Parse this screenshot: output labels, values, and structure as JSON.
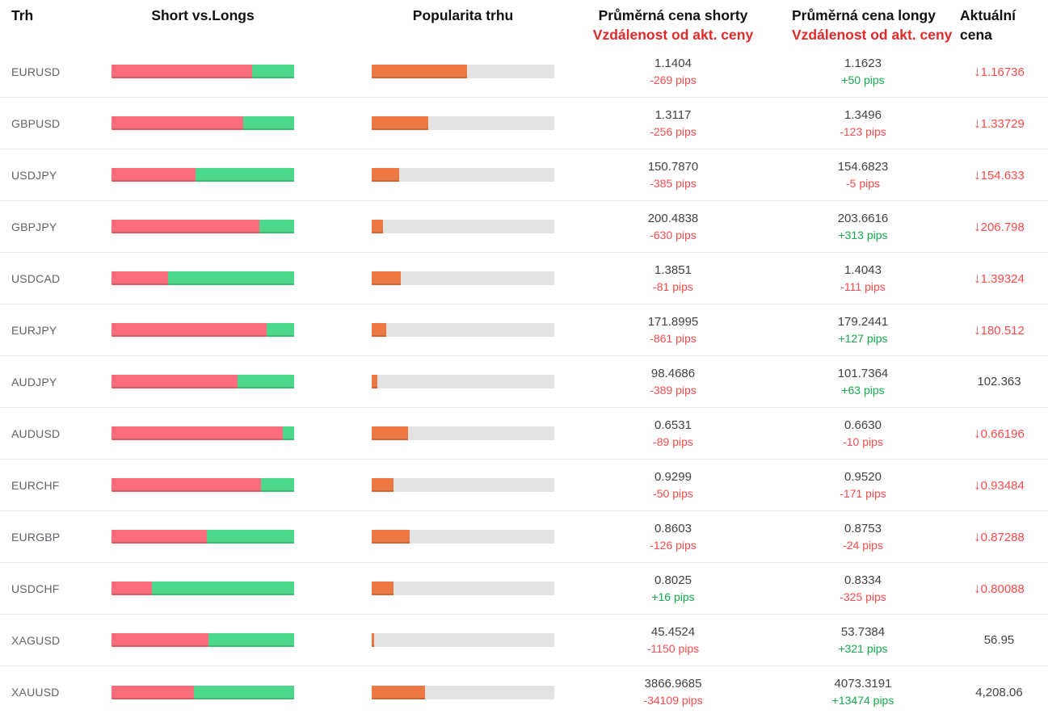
{
  "table": {
    "headers": {
      "market": "Trh",
      "short_vs_longs": "Short vs.Longs",
      "popularity": "Popularita trhu",
      "avg_short_line1": "Průměrná cena shorty",
      "avg_short_line2": "Vzdálenost od akt. ceny",
      "avg_long_line1": "Průměrná cena longy",
      "avg_long_line2": "Vzdálenost od akt. ceny",
      "current_line1": "Aktuální",
      "current_line2": "cena"
    },
    "rows": [
      {
        "market": "EURUSD",
        "short_pct": 77,
        "long_pct": 23,
        "popularity_pct": 52,
        "avg_short": "1.1404",
        "short_dist": "-269 pips",
        "avg_long": "1.1623",
        "long_dist": "+50 pips",
        "current": "1.16736",
        "current_dir": "down"
      },
      {
        "market": "GBPUSD",
        "short_pct": 72,
        "long_pct": 28,
        "popularity_pct": 31,
        "avg_short": "1.3117",
        "short_dist": "-256 pips",
        "avg_long": "1.3496",
        "long_dist": "-123 pips",
        "current": "1.33729",
        "current_dir": "down"
      },
      {
        "market": "USDJPY",
        "short_pct": 46,
        "long_pct": 54,
        "popularity_pct": 15,
        "avg_short": "150.7870",
        "short_dist": "-385 pips",
        "avg_long": "154.6823",
        "long_dist": "-5 pips",
        "current": "154.633",
        "current_dir": "down"
      },
      {
        "market": "GBPJPY",
        "short_pct": 81,
        "long_pct": 19,
        "popularity_pct": 6,
        "avg_short": "200.4838",
        "short_dist": "-630 pips",
        "avg_long": "203.6616",
        "long_dist": "+313 pips",
        "current": "206.798",
        "current_dir": "down"
      },
      {
        "market": "USDCAD",
        "short_pct": 31,
        "long_pct": 69,
        "popularity_pct": 16,
        "avg_short": "1.3851",
        "short_dist": "-81 pips",
        "avg_long": "1.4043",
        "long_dist": "-111 pips",
        "current": "1.39324",
        "current_dir": "down"
      },
      {
        "market": "EURJPY",
        "short_pct": 85,
        "long_pct": 15,
        "popularity_pct": 8,
        "avg_short": "171.8995",
        "short_dist": "-861 pips",
        "avg_long": "179.2441",
        "long_dist": "+127 pips",
        "current": "180.512",
        "current_dir": "down"
      },
      {
        "market": "AUDJPY",
        "short_pct": 69,
        "long_pct": 31,
        "popularity_pct": 3,
        "avg_short": "98.4686",
        "short_dist": "-389 pips",
        "avg_long": "101.7364",
        "long_dist": "+63 pips",
        "current": "102.363",
        "current_dir": "none"
      },
      {
        "market": "AUDUSD",
        "short_pct": 94,
        "long_pct": 6,
        "popularity_pct": 20,
        "avg_short": "0.6531",
        "short_dist": "-89 pips",
        "avg_long": "0.6630",
        "long_dist": "-10 pips",
        "current": "0.66196",
        "current_dir": "down"
      },
      {
        "market": "EURCHF",
        "short_pct": 82,
        "long_pct": 18,
        "popularity_pct": 12,
        "avg_short": "0.9299",
        "short_dist": "-50 pips",
        "avg_long": "0.9520",
        "long_dist": "-171 pips",
        "current": "0.93484",
        "current_dir": "down"
      },
      {
        "market": "EURGBP",
        "short_pct": 52,
        "long_pct": 48,
        "popularity_pct": 21,
        "avg_short": "0.8603",
        "short_dist": "-126 pips",
        "avg_long": "0.8753",
        "long_dist": "-24 pips",
        "current": "0.87288",
        "current_dir": "down"
      },
      {
        "market": "USDCHF",
        "short_pct": 22,
        "long_pct": 78,
        "popularity_pct": 12,
        "avg_short": "0.8025",
        "short_dist": "+16 pips",
        "avg_long": "0.8334",
        "long_dist": "-325 pips",
        "current": "0.80088",
        "current_dir": "down"
      },
      {
        "market": "XAGUSD",
        "short_pct": 53,
        "long_pct": 47,
        "popularity_pct": 1.5,
        "avg_short": "45.4524",
        "short_dist": "-1150 pips",
        "avg_long": "53.7384",
        "long_dist": "+321 pips",
        "current": "56.95",
        "current_dir": "none"
      },
      {
        "market": "XAUUSD",
        "short_pct": 45,
        "long_pct": 55,
        "popularity_pct": 29,
        "avg_short": "3866.9685",
        "short_dist": "-34109 pips",
        "avg_long": "4073.3191",
        "long_dist": "+13474 pips",
        "current": "4,208.06",
        "current_dir": "none"
      }
    ]
  },
  "icons": {
    "down_arrow": "↓"
  },
  "colors": {
    "short_bar": "#fb6d7c",
    "long_bar": "#4cd78b",
    "popularity_bar": "#ee7843",
    "bar_track": "#e3e3e3",
    "negative_text": "#f94c4c",
    "positive_text": "#17a74d",
    "header_red": "#e02b2b"
  }
}
